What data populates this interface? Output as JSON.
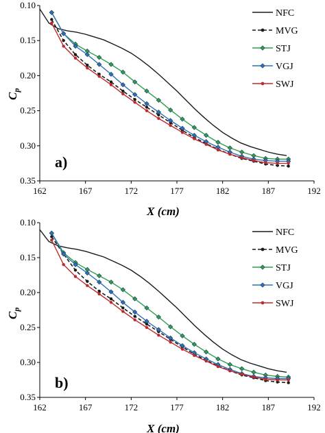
{
  "colors": {
    "NFC": "#1a1a1a",
    "MVG": "#1a1a1a",
    "STJ": "#2e9d4f",
    "VGJ": "#2f6fb5",
    "SWJ": "#c0292b"
  },
  "chart_data": [
    {
      "type": "line",
      "panel_label": "a)",
      "xlabel": "X (cm)",
      "ylabel": "Cp",
      "ylabel_main": "C",
      "ylabel_sub": "p",
      "xlim": [
        162,
        192
      ],
      "ylim": [
        0.35,
        0.1
      ],
      "y_inverted": true,
      "grid": false,
      "legend_position": "top-right",
      "x_ticks": [
        "162",
        "167",
        "172",
        "177",
        "182",
        "187",
        "192"
      ],
      "y_ticks": [
        "0.10",
        "0.15",
        "0.20",
        "0.25",
        "0.30",
        "0.35"
      ],
      "series": [
        {
          "name": "NFC",
          "style": "solid",
          "marker": "none",
          "x": [
            162,
            163,
            164,
            165,
            166,
            167,
            168,
            169,
            170,
            171,
            172,
            173,
            174,
            175,
            176,
            177,
            178,
            179,
            180,
            181,
            182,
            183,
            184,
            185,
            186,
            187,
            188,
            189
          ],
          "y": [
            0.105,
            0.125,
            0.133,
            0.136,
            0.138,
            0.141,
            0.145,
            0.149,
            0.155,
            0.161,
            0.168,
            0.177,
            0.187,
            0.198,
            0.21,
            0.222,
            0.235,
            0.248,
            0.26,
            0.271,
            0.281,
            0.289,
            0.296,
            0.301,
            0.305,
            0.309,
            0.312,
            0.314
          ]
        },
        {
          "name": "MVG",
          "style": "dashed",
          "marker": "dot",
          "x": [
            163.3,
            164.6,
            165.9,
            167.2,
            168.5,
            169.8,
            171.1,
            172.4,
            173.7,
            175.0,
            176.3,
            177.6,
            178.9,
            180.2,
            181.5,
            182.8,
            184.1,
            185.4,
            186.7,
            188,
            189.2
          ],
          "y": [
            0.12,
            0.15,
            0.17,
            0.185,
            0.198,
            0.209,
            0.222,
            0.234,
            0.245,
            0.256,
            0.267,
            0.278,
            0.288,
            0.297,
            0.305,
            0.312,
            0.318,
            0.322,
            0.326,
            0.328,
            0.329
          ]
        },
        {
          "name": "STJ",
          "style": "solid",
          "marker": "diamond",
          "x": [
            163.3,
            164.6,
            165.9,
            167.2,
            168.5,
            169.8,
            171.1,
            172.4,
            173.7,
            175.0,
            176.3,
            177.6,
            178.9,
            180.2,
            181.5,
            182.8,
            184.1,
            185.4,
            186.7,
            188,
            189.2
          ],
          "y": [
            0.11,
            0.14,
            0.155,
            0.165,
            0.174,
            0.184,
            0.195,
            0.209,
            0.222,
            0.235,
            0.249,
            0.262,
            0.274,
            0.285,
            0.295,
            0.303,
            0.309,
            0.314,
            0.318,
            0.319,
            0.319
          ]
        },
        {
          "name": "VGJ",
          "style": "solid",
          "marker": "diamond",
          "x": [
            163.3,
            164.6,
            165.9,
            167.2,
            168.5,
            169.8,
            171.1,
            172.4,
            173.7,
            175.0,
            176.3,
            177.6,
            178.9,
            180.2,
            181.5,
            182.8,
            184.1,
            185.4,
            186.7,
            188,
            189.2
          ],
          "y": [
            0.11,
            0.14,
            0.158,
            0.17,
            0.184,
            0.198,
            0.213,
            0.227,
            0.24,
            0.252,
            0.264,
            0.275,
            0.285,
            0.294,
            0.302,
            0.309,
            0.315,
            0.319,
            0.321,
            0.322,
            0.322
          ]
        },
        {
          "name": "SWJ",
          "style": "solid",
          "marker": "dot",
          "x": [
            163.3,
            164.6,
            165.9,
            167.2,
            168.5,
            169.8,
            171.1,
            172.4,
            173.7,
            175.0,
            176.3,
            177.6,
            178.9,
            180.2,
            181.5,
            182.8,
            184.1,
            185.4,
            186.7,
            188,
            189.2
          ],
          "y": [
            0.125,
            0.158,
            0.175,
            0.189,
            0.201,
            0.213,
            0.226,
            0.238,
            0.25,
            0.261,
            0.271,
            0.281,
            0.29,
            0.298,
            0.306,
            0.312,
            0.317,
            0.321,
            0.324,
            0.325,
            0.325
          ]
        }
      ]
    },
    {
      "type": "line",
      "panel_label": "b)",
      "xlabel": "X (cm)",
      "ylabel": "Cp",
      "ylabel_main": "C",
      "ylabel_sub": "p",
      "xlim": [
        162,
        192
      ],
      "ylim": [
        0.35,
        0.1
      ],
      "y_inverted": true,
      "grid": false,
      "legend_position": "top-right",
      "x_ticks": [
        "162",
        "167",
        "172",
        "177",
        "182",
        "187",
        "192"
      ],
      "y_ticks": [
        "0.10",
        "0.15",
        "0.20",
        "0.25",
        "0.30",
        "0.35"
      ],
      "series": [
        {
          "name": "NFC",
          "style": "solid",
          "marker": "none",
          "x": [
            162,
            163,
            164,
            165,
            166,
            167,
            168,
            169,
            170,
            171,
            172,
            173,
            174,
            175,
            176,
            177,
            178,
            179,
            180,
            181,
            182,
            183,
            184,
            185,
            186,
            187,
            188,
            189
          ],
          "y": [
            0.11,
            0.127,
            0.133,
            0.136,
            0.138,
            0.141,
            0.145,
            0.149,
            0.155,
            0.161,
            0.168,
            0.177,
            0.187,
            0.198,
            0.21,
            0.222,
            0.235,
            0.248,
            0.26,
            0.271,
            0.281,
            0.289,
            0.296,
            0.301,
            0.305,
            0.309,
            0.312,
            0.314
          ]
        },
        {
          "name": "MVG",
          "style": "dashed",
          "marker": "dot",
          "x": [
            163.3,
            164.6,
            165.9,
            167.2,
            168.5,
            169.8,
            171.1,
            172.4,
            173.7,
            175.0,
            176.3,
            177.6,
            178.9,
            180.2,
            181.5,
            182.8,
            184.1,
            185.4,
            186.7,
            188,
            189.2
          ],
          "y": [
            0.12,
            0.145,
            0.168,
            0.184,
            0.198,
            0.209,
            0.222,
            0.234,
            0.245,
            0.256,
            0.267,
            0.278,
            0.288,
            0.297,
            0.305,
            0.312,
            0.318,
            0.322,
            0.326,
            0.328,
            0.329
          ]
        },
        {
          "name": "STJ",
          "style": "solid",
          "marker": "diamond",
          "x": [
            163.3,
            164.6,
            165.9,
            167.2,
            168.5,
            169.8,
            171.1,
            172.4,
            173.7,
            175.0,
            176.3,
            177.6,
            178.9,
            180.2,
            181.5,
            182.8,
            184.1,
            185.4,
            186.7,
            188,
            189.2
          ],
          "y": [
            0.115,
            0.143,
            0.157,
            0.167,
            0.176,
            0.185,
            0.196,
            0.209,
            0.222,
            0.235,
            0.249,
            0.262,
            0.274,
            0.285,
            0.295,
            0.303,
            0.309,
            0.314,
            0.318,
            0.32,
            0.321
          ]
        },
        {
          "name": "VGJ",
          "style": "solid",
          "marker": "diamond",
          "x": [
            163.3,
            164.6,
            165.9,
            167.2,
            168.5,
            169.8,
            171.1,
            172.4,
            173.7,
            175.0,
            176.3,
            177.6,
            178.9,
            180.2,
            181.5,
            182.8,
            184.1,
            185.4,
            186.7,
            188,
            189.2
          ],
          "y": [
            0.115,
            0.145,
            0.16,
            0.172,
            0.185,
            0.199,
            0.214,
            0.228,
            0.241,
            0.253,
            0.265,
            0.276,
            0.286,
            0.295,
            0.303,
            0.31,
            0.316,
            0.32,
            0.322,
            0.323,
            0.323
          ]
        },
        {
          "name": "SWJ",
          "style": "solid",
          "marker": "dot",
          "x": [
            163.3,
            164.6,
            165.9,
            167.2,
            168.5,
            169.8,
            171.1,
            172.4,
            173.7,
            175.0,
            176.3,
            177.6,
            178.9,
            180.2,
            181.5,
            182.8,
            184.1,
            185.4,
            186.7,
            188,
            189.2
          ],
          "y": [
            0.125,
            0.16,
            0.177,
            0.19,
            0.202,
            0.214,
            0.227,
            0.239,
            0.25,
            0.261,
            0.271,
            0.281,
            0.29,
            0.298,
            0.306,
            0.312,
            0.317,
            0.321,
            0.324,
            0.325,
            0.325
          ]
        }
      ]
    }
  ]
}
